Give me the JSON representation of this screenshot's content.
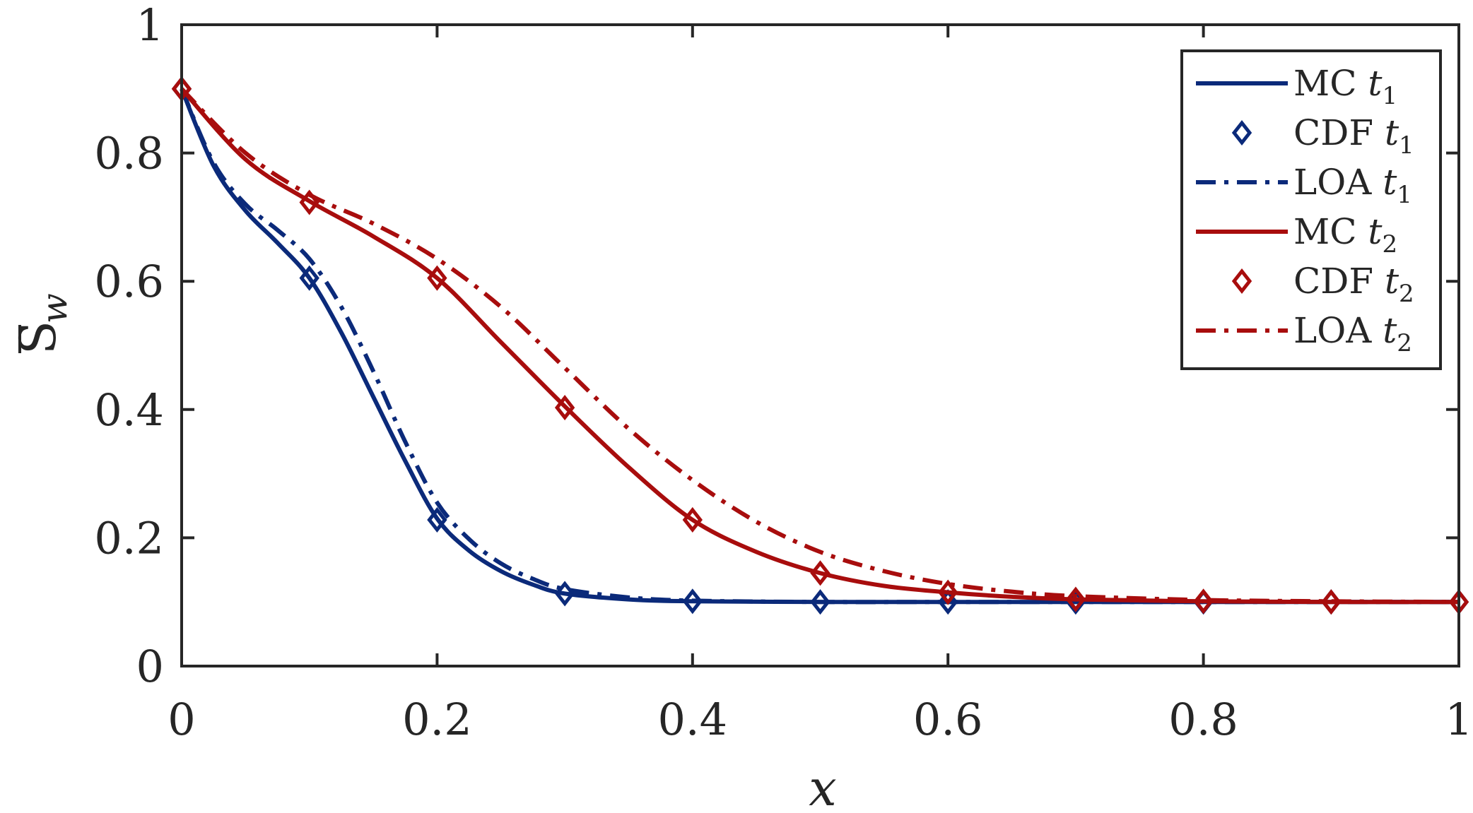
{
  "chart_data": {
    "type": "line",
    "xlabel": "x",
    "ylabel": {
      "main": "S",
      "sub": "w"
    },
    "xlim": [
      0,
      1
    ],
    "ylim": [
      0,
      1
    ],
    "xticks": [
      "0",
      "0.2",
      "0.4",
      "0.6",
      "0.8",
      "1"
    ],
    "yticks": [
      "0",
      "0.2",
      "0.4",
      "0.6",
      "0.8",
      "1"
    ],
    "grid": false,
    "legend": "top-right",
    "series": [
      {
        "name": "MC",
        "sub": "1",
        "style": "solid",
        "color": "#0b2a7a",
        "x": [
          0,
          0.025,
          0.05,
          0.075,
          0.1,
          0.125,
          0.15,
          0.175,
          0.2,
          0.225,
          0.25,
          0.275,
          0.3,
          0.35,
          0.4,
          0.5,
          0.6,
          0.7,
          0.8,
          0.9,
          1.0
        ],
        "y": [
          0.9,
          0.78,
          0.71,
          0.66,
          0.605,
          0.52,
          0.42,
          0.32,
          0.23,
          0.18,
          0.148,
          0.127,
          0.113,
          0.104,
          0.101,
          0.1,
          0.1,
          0.1,
          0.1,
          0.1,
          0.1
        ]
      },
      {
        "name": "CDF",
        "sub": "1",
        "style": "marker",
        "color": "#0b2a7a",
        "x": [
          0,
          0.1,
          0.2,
          0.3,
          0.4,
          0.5,
          0.6,
          0.7,
          0.8,
          0.9,
          1.0
        ],
        "y": [
          0.9,
          0.605,
          0.228,
          0.113,
          0.101,
          0.1,
          0.1,
          0.1,
          0.1,
          0.1,
          0.1
        ]
      },
      {
        "name": "LOA",
        "sub": "1",
        "style": "dashdot",
        "color": "#0b2a7a",
        "x": [
          0,
          0.025,
          0.05,
          0.075,
          0.1,
          0.125,
          0.15,
          0.175,
          0.2,
          0.225,
          0.25,
          0.275,
          0.3,
          0.35,
          0.4,
          0.5,
          0.6,
          0.7,
          0.8,
          0.9,
          1.0
        ],
        "y": [
          0.9,
          0.785,
          0.72,
          0.68,
          0.635,
          0.56,
          0.46,
          0.35,
          0.255,
          0.198,
          0.16,
          0.136,
          0.12,
          0.107,
          0.102,
          0.1,
          0.1,
          0.1,
          0.1,
          0.1,
          0.1
        ]
      },
      {
        "name": "MC",
        "sub": "2",
        "style": "solid",
        "color": "#a80d0d",
        "x": [
          0,
          0.05,
          0.1,
          0.15,
          0.2,
          0.25,
          0.3,
          0.35,
          0.4,
          0.45,
          0.5,
          0.55,
          0.6,
          0.65,
          0.7,
          0.8,
          0.9,
          1.0
        ],
        "y": [
          0.9,
          0.79,
          0.725,
          0.67,
          0.605,
          0.505,
          0.405,
          0.31,
          0.228,
          0.178,
          0.145,
          0.125,
          0.115,
          0.108,
          0.104,
          0.101,
          0.1,
          0.1
        ]
      },
      {
        "name": "CDF",
        "sub": "2",
        "style": "marker",
        "color": "#a80d0d",
        "x": [
          0,
          0.1,
          0.2,
          0.3,
          0.4,
          0.5,
          0.6,
          0.7,
          0.8,
          0.9,
          1.0
        ],
        "y": [
          0.9,
          0.723,
          0.605,
          0.403,
          0.228,
          0.145,
          0.115,
          0.104,
          0.101,
          0.1,
          0.1
        ]
      },
      {
        "name": "LOA",
        "sub": "2",
        "style": "dashdot",
        "color": "#a80d0d",
        "x": [
          0,
          0.05,
          0.1,
          0.15,
          0.2,
          0.25,
          0.3,
          0.35,
          0.4,
          0.45,
          0.5,
          0.55,
          0.6,
          0.65,
          0.7,
          0.8,
          0.9,
          1.0
        ],
        "y": [
          0.9,
          0.8,
          0.735,
          0.69,
          0.635,
          0.56,
          0.465,
          0.37,
          0.29,
          0.225,
          0.178,
          0.148,
          0.128,
          0.116,
          0.109,
          0.103,
          0.101,
          0.1
        ]
      }
    ]
  }
}
